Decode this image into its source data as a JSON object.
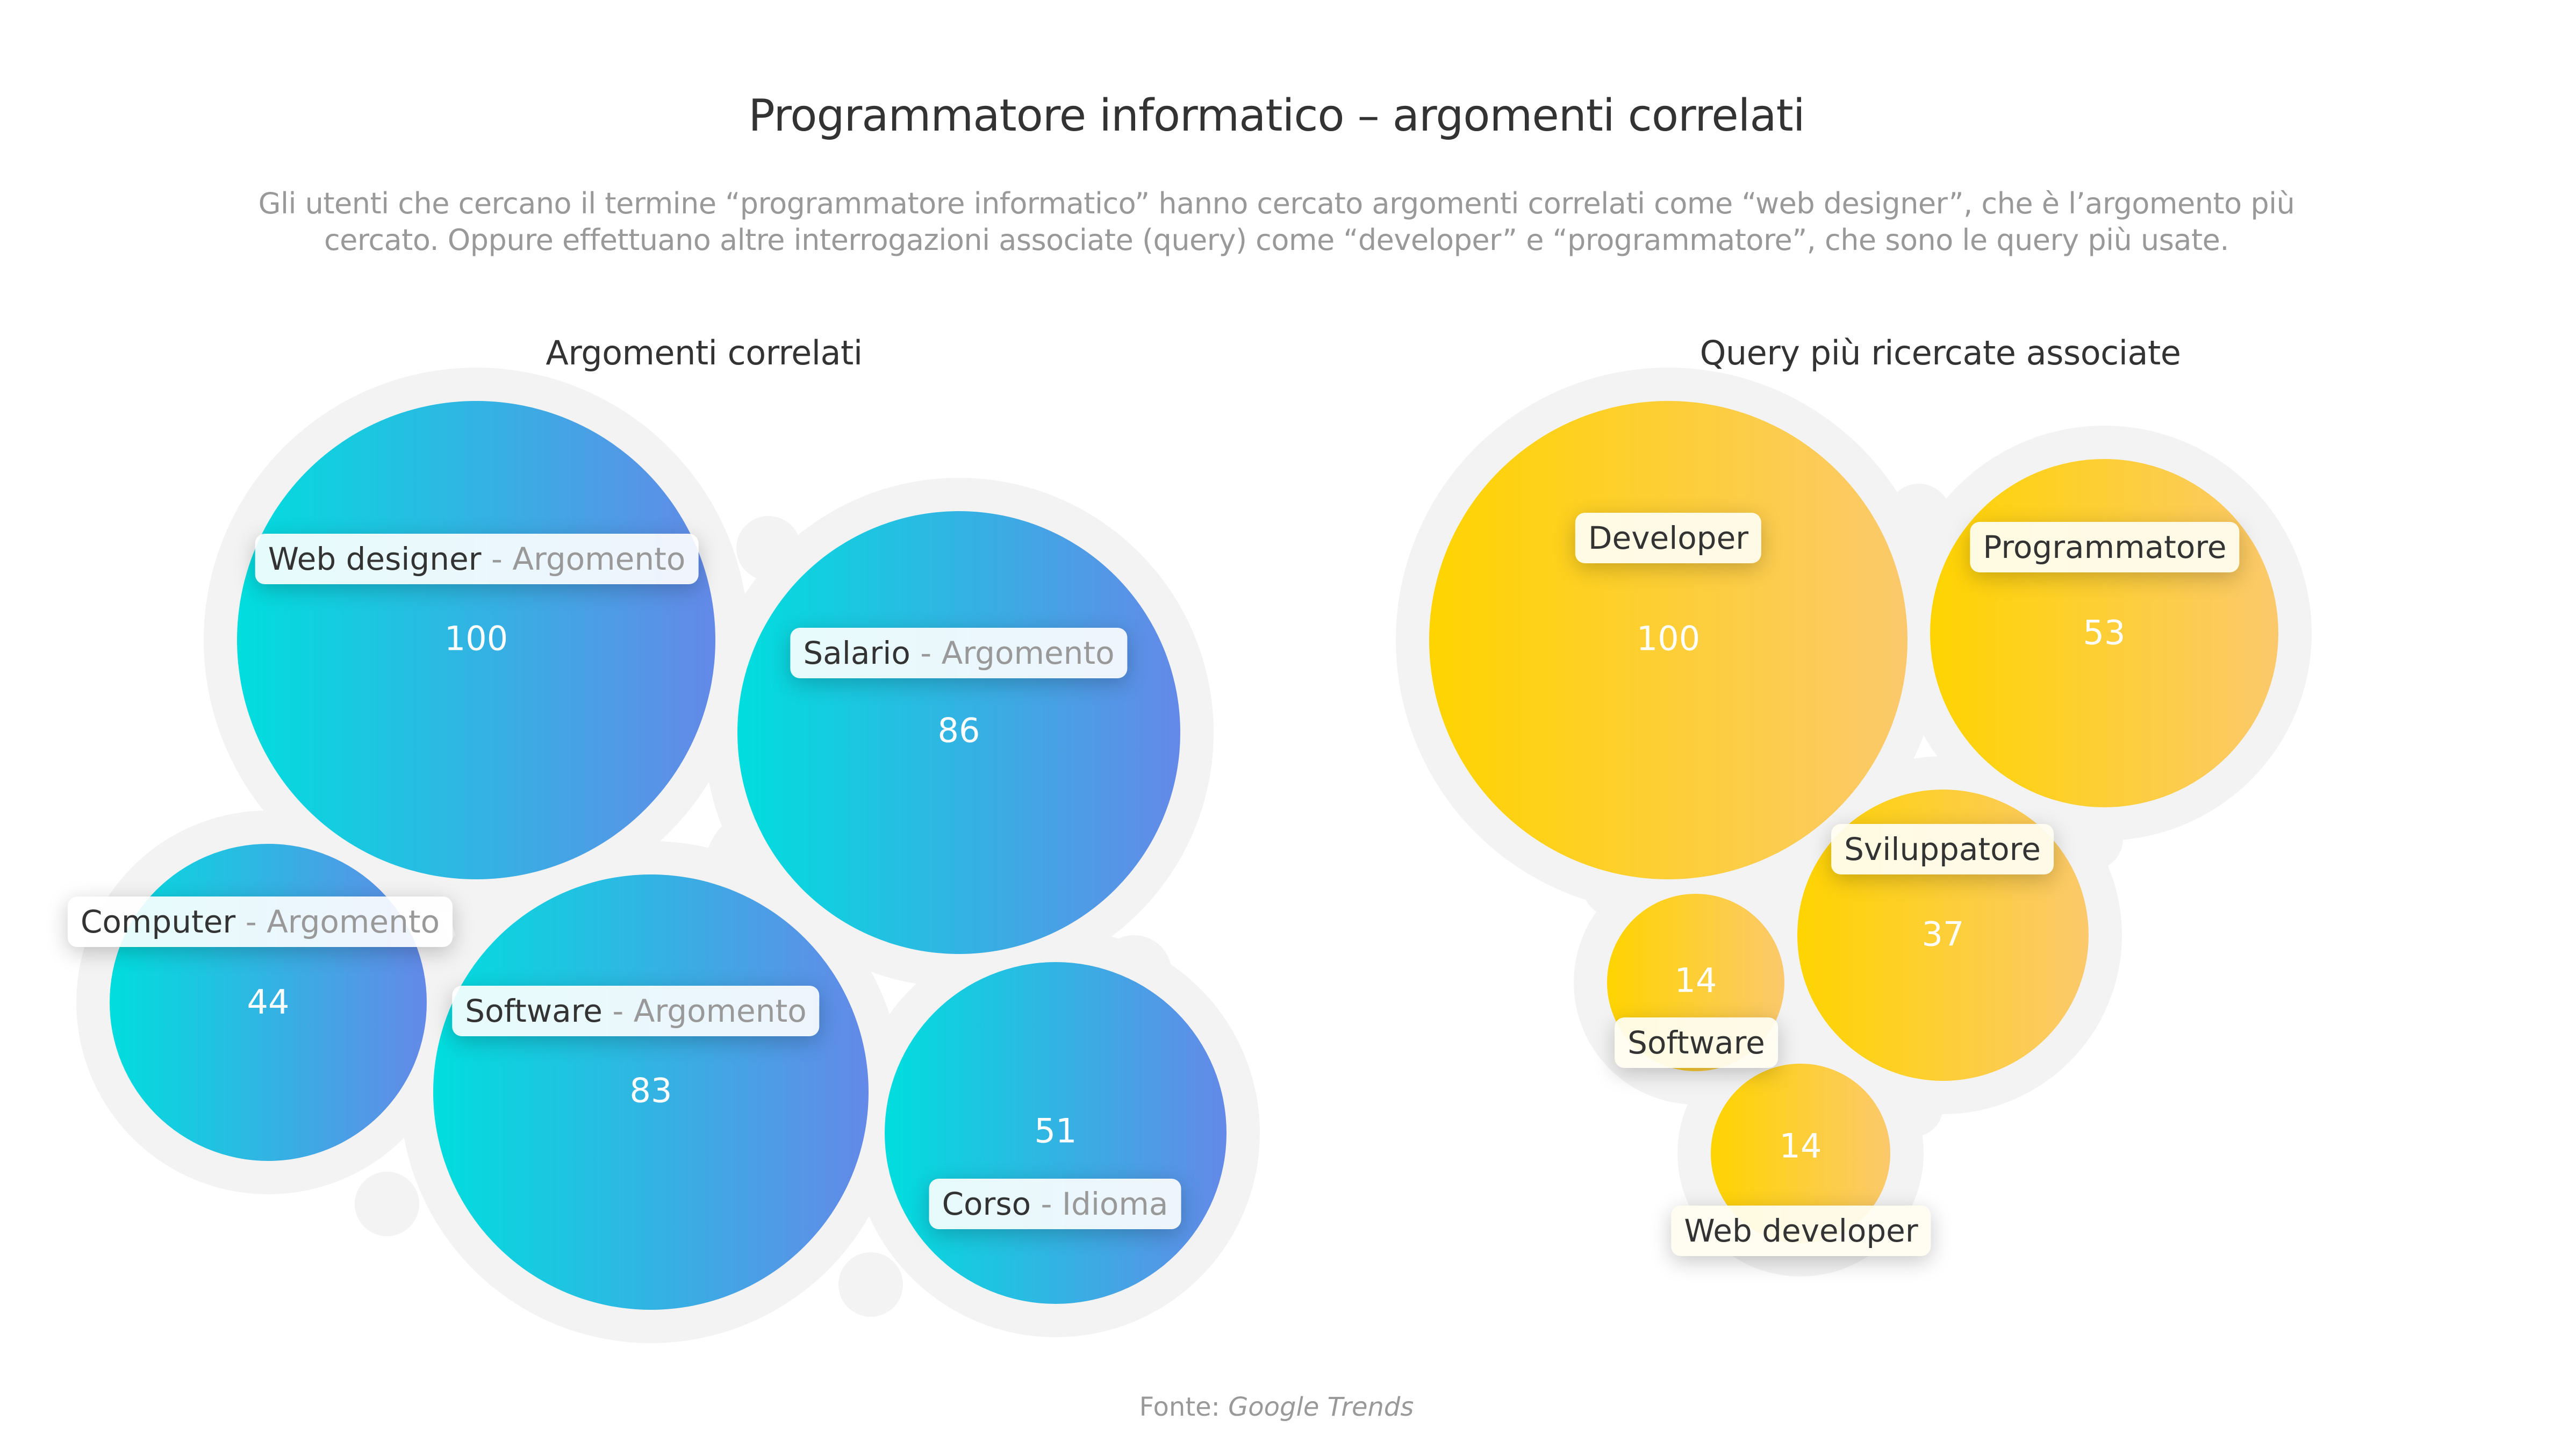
{
  "header": {
    "title": "Programmatore informatico – argomenti correlati",
    "subtitle_line1": "Gli utenti che cercano il termine “programmatore informatico” hanno cercato argomenti correlati come “web designer”, che è l’argomento più",
    "subtitle_line2": "cercato. Oppure effettuano altre interrogazioni associate (query) come “developer” e “programmatore”, che sono le query più usate."
  },
  "footer": {
    "prefix": "Fonte: ",
    "source": "Google Trends"
  },
  "chart_data": [
    {
      "type": "bubble",
      "title": "Argomenti correlati",
      "colors": {
        "gradient_start": "#00DEDE",
        "gradient_end": "#6489E8",
        "halo": "#F3F3F3"
      },
      "separator": " - ",
      "points": [
        {
          "name": "Web designer",
          "category": "Argomento",
          "value": 100
        },
        {
          "name": "Salario",
          "category": "Argomento",
          "value": 86
        },
        {
          "name": "Computer",
          "category": "Argomento",
          "value": 44
        },
        {
          "name": "Software",
          "category": "Argomento",
          "value": 83
        },
        {
          "name": "Corso",
          "category": "Idioma",
          "value": 51
        }
      ]
    },
    {
      "type": "bubble",
      "title": "Query più ricercate associate",
      "colors": {
        "gradient_start": "#FFD400",
        "gradient_end": "#FBC96C",
        "halo": "#F3F3F3"
      },
      "points": [
        {
          "name": "Developer",
          "value": 100
        },
        {
          "name": "Programmatore",
          "value": 53
        },
        {
          "name": "Sviluppatore",
          "value": 37
        },
        {
          "name": "Software",
          "value": 14
        },
        {
          "name": "Web developer",
          "value": 14
        }
      ]
    }
  ]
}
